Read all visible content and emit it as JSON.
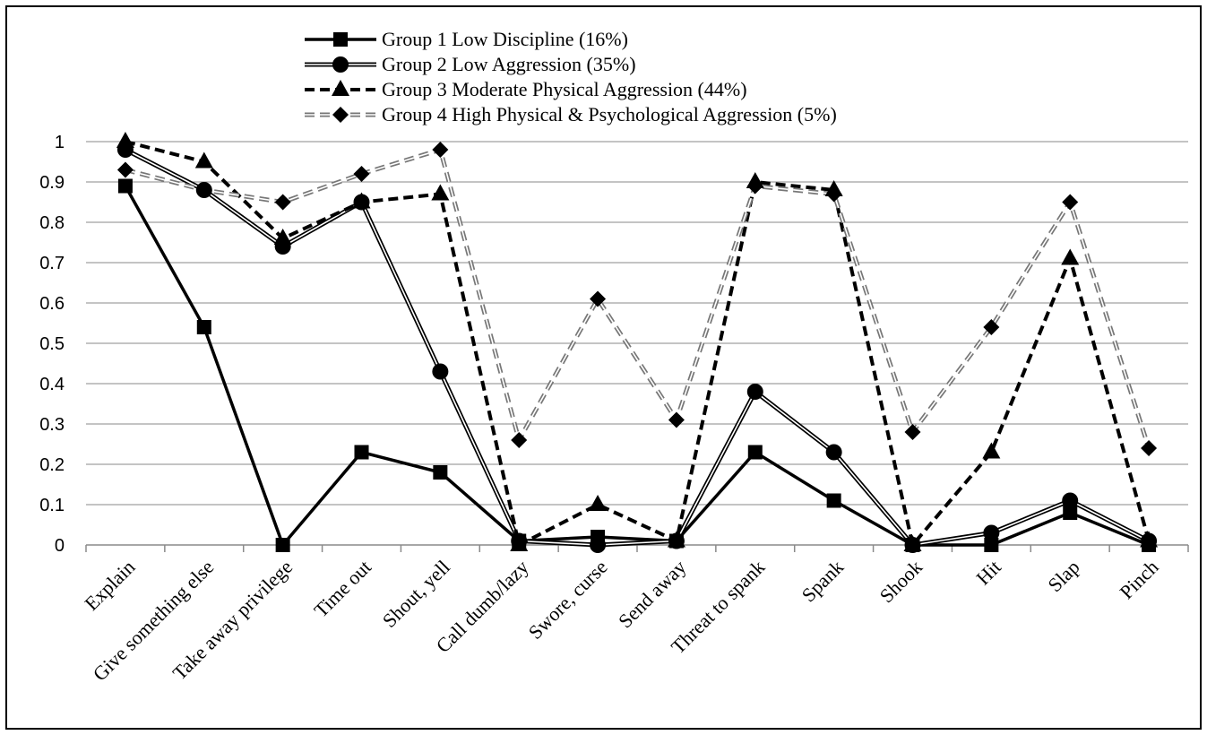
{
  "chart_data": {
    "type": "line",
    "categories": [
      "Explain",
      "Give something else",
      "Take away privilege",
      "Time out",
      "Shout, yell",
      "Call dumb/lazy",
      "Swore, curse",
      "Send away",
      "Threat to spank",
      "Spank",
      "Shook",
      "Hit",
      "Slap",
      "Pinch"
    ],
    "ylim": [
      0,
      1
    ],
    "yticks": [
      "0",
      "0.1",
      "0.2",
      "0.3",
      "0.4",
      "0.5",
      "0.6",
      "0.7",
      "0.8",
      "0.9",
      "1"
    ],
    "grid": true,
    "legend_position": "top-center",
    "series": [
      {
        "name": "Group 1 Low Discipline (16%)",
        "marker": "square",
        "line_style": "solid",
        "values": [
          0.89,
          0.54,
          0.0,
          0.23,
          0.18,
          0.01,
          0.02,
          0.01,
          0.23,
          0.11,
          0.0,
          0.0,
          0.08,
          0.0
        ]
      },
      {
        "name": "Group 2 Low Aggression (35%)",
        "marker": "circle",
        "line_style": "double",
        "values": [
          0.98,
          0.88,
          0.74,
          0.85,
          0.43,
          0.01,
          0.0,
          0.01,
          0.38,
          0.23,
          0.0,
          0.03,
          0.11,
          0.01
        ]
      },
      {
        "name": "Group 3 Moderate Physical Aggression (44%)",
        "marker": "triangle",
        "line_style": "dashed",
        "values": [
          1.0,
          0.95,
          0.76,
          0.85,
          0.87,
          0.0,
          0.1,
          0.01,
          0.9,
          0.88,
          0.0,
          0.23,
          0.71,
          0.01
        ]
      },
      {
        "name": "Group 4 High Physical & Psychological Aggression (5%)",
        "marker": "diamond",
        "line_style": "double-dashed",
        "values": [
          0.93,
          0.88,
          0.85,
          0.92,
          0.98,
          0.26,
          0.61,
          0.31,
          0.89,
          0.87,
          0.28,
          0.54,
          0.85,
          0.24
        ]
      }
    ]
  }
}
